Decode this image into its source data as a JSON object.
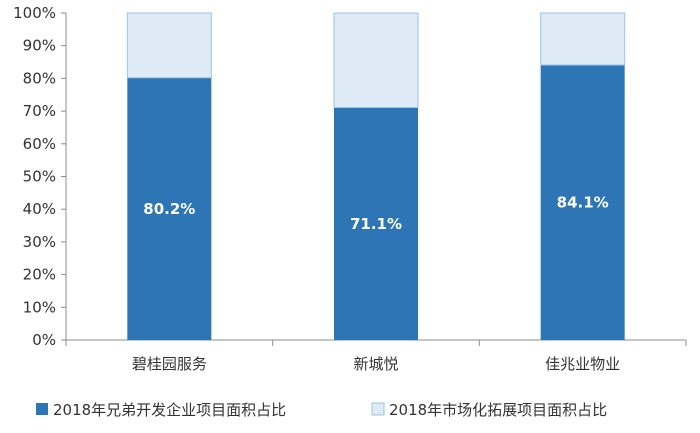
{
  "chart_data": {
    "type": "bar",
    "stacked": true,
    "categories": [
      "碧桂园服务",
      "新城悦",
      "佳兆业物业"
    ],
    "series": [
      {
        "name": "2018年兄弟开发企业项目面积占比",
        "values": [
          80.2,
          71.1,
          84.1
        ],
        "color": "#2E75B6",
        "labels": [
          "80.2%",
          "71.1%",
          "84.1%"
        ]
      },
      {
        "name": "2018年市场化拓展项目面积占比",
        "values": [
          19.8,
          28.9,
          15.9
        ],
        "color": "#DEEBF7",
        "border": "#9DC3E6"
      }
    ],
    "yticks": [
      "0%",
      "10%",
      "20%",
      "30%",
      "40%",
      "50%",
      "60%",
      "70%",
      "80%",
      "90%",
      "100%"
    ],
    "ylim": [
      0,
      100
    ],
    "grid": false,
    "legend_position": "bottom"
  }
}
